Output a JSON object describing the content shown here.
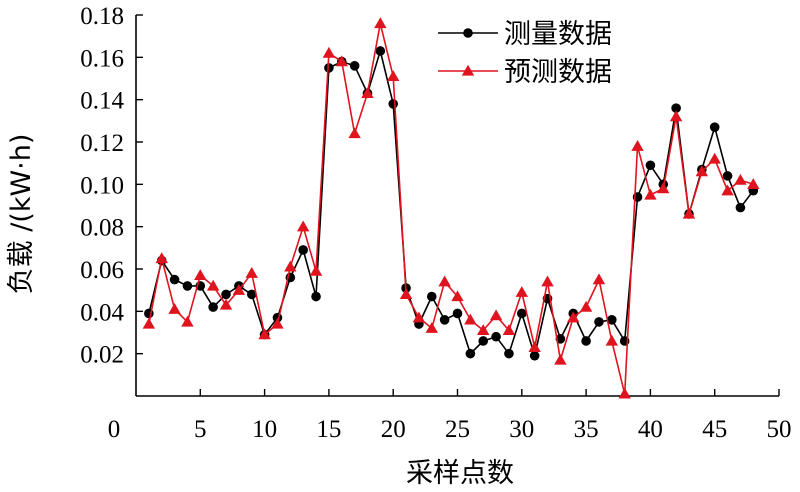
{
  "chart_data": {
    "type": "line",
    "xlabel": "采样点数",
    "ylabel": "负载 /(kW·h)",
    "xlim": [
      0,
      50
    ],
    "ylim": [
      0,
      0.18
    ],
    "x_ticks": [
      "0",
      "5",
      "10",
      "15",
      "20",
      "25",
      "30",
      "35",
      "40",
      "45",
      "50"
    ],
    "y_ticks": [
      "0.02",
      "0.04",
      "0.06",
      "0.08",
      "0.10",
      "0.12",
      "0.14",
      "0.16",
      "0.18"
    ],
    "x_tick_values": [
      0,
      5,
      10,
      15,
      20,
      25,
      30,
      35,
      40,
      45,
      50
    ],
    "y_tick_values": [
      0.02,
      0.04,
      0.06,
      0.08,
      0.1,
      0.12,
      0.14,
      0.16,
      0.18
    ],
    "grid": false,
    "legend_position": "top-right",
    "x": [
      1,
      2,
      3,
      4,
      5,
      6,
      7,
      8,
      9,
      10,
      11,
      12,
      13,
      14,
      15,
      16,
      17,
      18,
      19,
      20,
      21,
      22,
      23,
      24,
      25,
      26,
      27,
      28,
      29,
      30,
      31,
      32,
      33,
      34,
      35,
      36,
      37,
      38,
      39,
      40,
      41,
      42,
      43,
      44,
      45,
      46,
      47,
      48
    ],
    "series": [
      {
        "name": "测量数据",
        "color": "#000000",
        "marker": "circle",
        "values": [
          0.039,
          0.064,
          0.055,
          0.052,
          0.052,
          0.042,
          0.048,
          0.052,
          0.048,
          0.029,
          0.037,
          0.056,
          0.069,
          0.047,
          0.155,
          0.158,
          0.156,
          0.143,
          0.163,
          0.138,
          0.051,
          0.034,
          0.047,
          0.036,
          0.039,
          0.02,
          0.026,
          0.028,
          0.02,
          0.039,
          0.019,
          0.046,
          0.027,
          0.039,
          0.026,
          0.035,
          0.036,
          0.026,
          0.094,
          0.109,
          0.1,
          0.136,
          0.086,
          0.107,
          0.127,
          0.104,
          0.089,
          0.097
        ]
      },
      {
        "name": "预测数据",
        "color": "#e0141e",
        "marker": "triangle",
        "values": [
          0.034,
          0.065,
          0.041,
          0.035,
          0.057,
          0.052,
          0.043,
          0.05,
          0.058,
          0.029,
          0.034,
          0.061,
          0.08,
          0.059,
          0.162,
          0.158,
          0.124,
          0.143,
          0.176,
          0.151,
          0.048,
          0.037,
          0.032,
          0.054,
          0.047,
          0.036,
          0.031,
          0.038,
          0.031,
          0.049,
          0.023,
          0.054,
          0.017,
          0.037,
          0.042,
          0.055,
          0.026,
          0.001,
          0.118,
          0.095,
          0.098,
          0.132,
          0.086,
          0.106,
          0.112,
          0.097,
          0.102,
          0.1
        ]
      }
    ]
  }
}
